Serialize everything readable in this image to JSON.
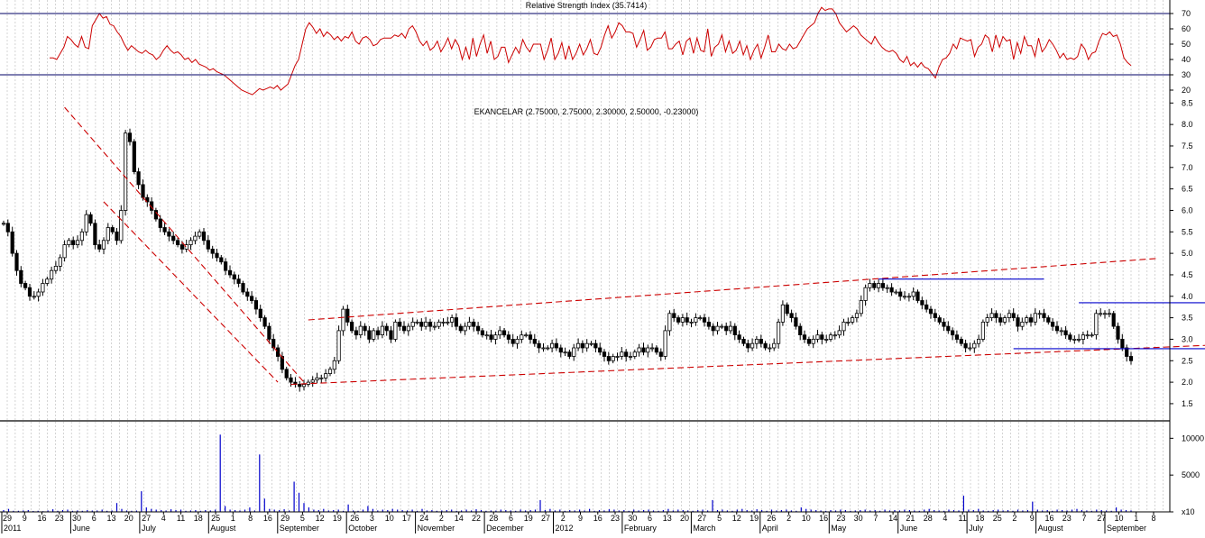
{
  "chart_data": [
    {
      "type": "line",
      "title": "Relative Strength Index (35.7414)",
      "ylim": [
        15,
        75
      ],
      "y_ticks": [
        70,
        60,
        50,
        40,
        30,
        20
      ],
      "reference_lines": [
        70,
        30
      ],
      "color": "#cc0000",
      "series": [
        {
          "values": [
            41,
            41,
            40,
            44,
            48,
            55,
            53,
            50,
            48,
            55,
            48,
            47,
            62,
            66,
            70,
            67,
            68,
            63,
            62,
            58,
            55,
            50,
            46,
            49,
            47,
            45,
            44,
            46,
            44,
            43,
            40,
            42,
            46,
            49,
            46,
            44,
            45,
            43,
            40,
            41,
            38,
            40,
            37,
            36,
            35,
            33,
            34,
            32,
            31,
            30,
            28,
            26,
            24,
            22,
            20,
            19,
            18,
            17,
            19,
            21,
            20,
            21,
            22,
            21,
            23,
            20,
            22,
            24,
            30,
            36,
            40,
            50,
            60,
            64,
            61,
            57,
            60,
            55,
            58,
            56,
            53,
            55,
            52,
            55,
            54,
            58,
            52,
            50,
            54,
            55,
            53,
            49,
            50,
            53,
            54,
            54,
            54,
            56,
            55,
            57,
            54,
            60,
            62,
            58,
            52,
            49,
            52,
            46,
            48,
            52,
            45,
            49,
            54,
            47,
            53,
            49,
            40,
            48,
            40,
            54,
            42,
            50,
            56,
            44,
            52,
            40,
            42,
            48,
            48,
            38,
            43,
            48,
            44,
            53,
            48,
            45,
            50,
            50,
            50,
            40,
            46,
            54,
            40,
            44,
            51,
            40,
            49,
            40,
            44,
            50,
            43,
            47,
            53,
            44,
            43,
            48,
            56,
            62,
            54,
            58,
            64,
            62,
            58,
            58,
            57,
            48,
            53,
            59,
            46,
            48,
            53,
            54,
            54,
            58,
            47,
            47,
            50,
            52,
            43,
            52,
            54,
            44,
            54,
            46,
            45,
            60,
            42,
            48,
            50,
            56,
            45,
            52,
            44,
            46,
            52,
            43,
            49,
            40,
            46,
            50,
            41,
            48,
            56,
            45,
            45,
            50,
            47,
            46,
            50,
            47,
            48,
            52,
            56,
            60,
            62,
            64,
            70,
            74,
            72,
            73,
            73,
            70,
            64,
            61,
            58,
            60,
            62,
            60,
            56,
            54,
            52,
            50,
            55,
            51,
            48,
            46,
            45,
            46,
            44,
            40,
            38,
            42,
            36,
            38,
            35,
            38,
            35,
            34,
            31,
            28,
            35,
            40,
            41,
            44,
            50,
            47,
            54,
            53,
            52,
            53,
            42,
            48,
            50,
            56,
            54,
            45,
            56,
            48,
            55,
            52,
            53,
            40,
            51,
            44,
            55,
            49,
            49,
            42,
            54,
            45,
            48,
            53,
            50,
            46,
            41,
            44,
            40,
            41,
            40,
            42,
            50,
            47,
            40,
            44,
            45,
            52,
            57,
            56,
            58,
            55,
            56,
            50,
            41,
            38,
            36
          ]
        }
      ]
    },
    {
      "type": "candlestick",
      "title": "EKANCELAR (2.75000, 2.75000, 2.30000, 2.50000, -0.23000)",
      "ylim": [
        1.1,
        8.8
      ],
      "y_ticks": [
        8.5,
        8.0,
        7.5,
        7.0,
        6.5,
        6.0,
        5.5,
        5.0,
        4.5,
        4.0,
        3.5,
        3.0,
        2.5,
        2.0,
        1.5
      ],
      "close": [
        5.7,
        5.5,
        5.0,
        4.6,
        4.3,
        4.2,
        4.0,
        4.0,
        4.1,
        4.3,
        4.4,
        4.6,
        4.7,
        4.9,
        5.2,
        5.3,
        5.2,
        5.3,
        5.5,
        5.9,
        5.7,
        5.2,
        5.1,
        5.3,
        5.6,
        5.5,
        5.3,
        6.0,
        7.8,
        7.6,
        6.9,
        6.6,
        6.3,
        6.2,
        6.0,
        5.8,
        5.6,
        5.5,
        5.4,
        5.3,
        5.2,
        5.1,
        5.2,
        5.3,
        5.4,
        5.5,
        5.3,
        5.1,
        5.0,
        4.9,
        4.8,
        4.6,
        4.5,
        4.4,
        4.3,
        4.1,
        4.0,
        3.9,
        3.7,
        3.5,
        3.3,
        3.0,
        2.8,
        2.6,
        2.3,
        2.1,
        2.0,
        1.95,
        1.9,
        1.95,
        2.0,
        2.05,
        2.1,
        2.1,
        2.2,
        2.3,
        2.5,
        3.2,
        3.7,
        3.4,
        3.2,
        3.1,
        3.3,
        3.2,
        3.0,
        3.2,
        3.1,
        3.3,
        3.2,
        3.0,
        3.4,
        3.3,
        3.2,
        3.3,
        3.4,
        3.4,
        3.3,
        3.4,
        3.3,
        3.3,
        3.4,
        3.4,
        3.4,
        3.5,
        3.3,
        3.2,
        3.3,
        3.4,
        3.3,
        3.2,
        3.1,
        3.1,
        3.0,
        3.1,
        3.2,
        3.1,
        3.0,
        2.9,
        3.0,
        3.1,
        3.1,
        3.0,
        2.9,
        2.8,
        2.8,
        2.8,
        2.9,
        2.8,
        2.7,
        2.7,
        2.6,
        2.8,
        2.9,
        2.8,
        2.9,
        2.9,
        2.8,
        2.7,
        2.6,
        2.5,
        2.6,
        2.6,
        2.7,
        2.6,
        2.6,
        2.7,
        2.8,
        2.7,
        2.8,
        2.8,
        2.7,
        2.6,
        3.2,
        3.6,
        3.5,
        3.4,
        3.5,
        3.4,
        3.4,
        3.5,
        3.5,
        3.4,
        3.3,
        3.2,
        3.3,
        3.3,
        3.2,
        3.3,
        3.1,
        3.0,
        2.9,
        2.8,
        2.9,
        3.0,
        2.9,
        2.8,
        2.8,
        2.9,
        3.4,
        3.8,
        3.6,
        3.5,
        3.3,
        3.1,
        3.0,
        2.9,
        3.0,
        3.1,
        3.0,
        3.0,
        3.1,
        3.1,
        3.2,
        3.4,
        3.4,
        3.5,
        3.6,
        3.9,
        4.2,
        4.3,
        4.2,
        4.3,
        4.2,
        4.2,
        4.1,
        4.1,
        4.0,
        4.0,
        4.0,
        4.1,
        3.9,
        3.8,
        3.7,
        3.6,
        3.5,
        3.4,
        3.3,
        3.2,
        3.1,
        3.0,
        2.9,
        2.8,
        2.8,
        2.9,
        3.0,
        3.4,
        3.5,
        3.6,
        3.5,
        3.4,
        3.5,
        3.6,
        3.5,
        3.3,
        3.4,
        3.5,
        3.4,
        3.6,
        3.6,
        3.5,
        3.4,
        3.3,
        3.2,
        3.2,
        3.1,
        3.0,
        3.0,
        3.0,
        3.1,
        3.1,
        3.1,
        3.6,
        3.6,
        3.6,
        3.6,
        3.3,
        3.0,
        2.8,
        2.6,
        2.5
      ],
      "annotations": [
        {
          "type": "trendline",
          "from": [
            14,
            8.4
          ],
          "to": [
            69,
            2.0
          ],
          "style": "dashed",
          "color": "#cc0000"
        },
        {
          "type": "trendline",
          "from": [
            23,
            6.2
          ],
          "to": [
            63,
            2.0
          ],
          "style": "dashed",
          "color": "#cc0000"
        },
        {
          "type": "trendline",
          "from": [
            66,
            1.95
          ],
          "to": [
            286,
            2.9
          ],
          "style": "dashed",
          "color": "#cc0000"
        },
        {
          "type": "trendline",
          "from": [
            70,
            3.45
          ],
          "to": [
            265,
            4.88
          ],
          "style": "dashed",
          "color": "#cc0000"
        },
        {
          "type": "hline",
          "from": [
            201,
            4.4
          ],
          "to": [
            239,
            4.4
          ],
          "color": "#0000cc"
        },
        {
          "type": "hline",
          "from": [
            247,
            3.85
          ],
          "to": [
            286,
            3.85
          ],
          "color": "#0000cc"
        },
        {
          "type": "hline",
          "from": [
            232,
            2.78
          ],
          "to": [
            283,
            2.78
          ],
          "color": "#0000cc"
        }
      ]
    },
    {
      "type": "bar",
      "ylim": [
        0,
        12000
      ],
      "y_ticks": [
        10000,
        5000,
        0
      ],
      "y_tick_labels": [
        "10000",
        "5000",
        "x10"
      ],
      "color": "#0000cc",
      "values": [
        250,
        400,
        150,
        150,
        200,
        250,
        120,
        150,
        100,
        200,
        350,
        150,
        250,
        300,
        150,
        200,
        150,
        250,
        180,
        200,
        300,
        150,
        200,
        1200,
        400,
        200,
        150,
        180,
        2800,
        600,
        400,
        300,
        250,
        200,
        350,
        250,
        300,
        150,
        200,
        250,
        150,
        250,
        200,
        300,
        10500,
        800,
        300,
        250,
        200,
        300,
        600,
        200,
        7800,
        1800,
        400,
        300,
        250,
        350,
        200,
        4100,
        2600,
        1200,
        600,
        300,
        250,
        400,
        200,
        250,
        300,
        150,
        1000,
        200,
        150,
        300,
        800,
        400,
        200,
        300,
        250,
        400,
        300,
        250,
        200,
        300,
        150,
        400,
        200,
        250,
        150,
        200,
        250,
        300,
        150,
        200,
        300,
        200,
        350,
        250,
        150,
        200,
        180,
        300,
        250,
        200,
        150,
        300,
        200,
        250,
        300,
        1600,
        250,
        400,
        200,
        300,
        150,
        250,
        200,
        300,
        200,
        400,
        150,
        250,
        200,
        350,
        300,
        200,
        250,
        150,
        300,
        200,
        250,
        300,
        200,
        150,
        250,
        400,
        200,
        300,
        250,
        200,
        150,
        250,
        300,
        200,
        1600,
        250,
        300,
        200,
        150,
        300,
        400,
        250,
        200,
        350,
        250,
        150,
        300,
        200,
        250,
        300,
        200,
        150,
        600,
        400,
        300,
        250,
        200,
        150,
        250,
        200,
        300,
        250,
        150,
        200,
        250,
        300,
        200,
        250,
        150,
        300,
        200,
        250,
        200,
        300,
        250,
        200,
        150,
        300,
        400,
        250,
        200,
        150,
        300,
        250,
        200,
        2200,
        300,
        250,
        400,
        200,
        150,
        250,
        300,
        200,
        250,
        150,
        300,
        200,
        250,
        1400,
        300,
        200,
        250,
        150,
        300,
        250,
        200,
        300,
        400,
        250,
        200,
        150,
        300,
        250,
        200,
        150,
        600,
        300,
        250,
        200
      ]
    }
  ],
  "x_axis": {
    "tick_labels": [
      "29",
      "9",
      "16",
      "23",
      "30",
      "6",
      "13",
      "20",
      "27",
      "4",
      "11",
      "18",
      "25",
      "1",
      "8",
      "16",
      "29",
      "5",
      "12",
      "19",
      "26",
      "3",
      "10",
      "17",
      "24",
      "2",
      "14",
      "22",
      "28",
      "6",
      "19",
      "27",
      "2",
      "9",
      "16",
      "23",
      "30",
      "6",
      "13",
      "20",
      "27",
      "5",
      "12",
      "19",
      "26",
      "2",
      "10",
      "16",
      "23",
      "30",
      "7",
      "14",
      "21",
      "28",
      "4",
      "11",
      "18",
      "25",
      "2",
      "9",
      "16",
      "23",
      "7",
      "27",
      "10",
      "1",
      "8"
    ],
    "month_labels": [
      "2011",
      "June",
      "July",
      "August",
      "September",
      "October",
      "November",
      "December",
      "2012",
      "February",
      "March",
      "April",
      "May",
      "June",
      "July",
      "August",
      "September"
    ]
  }
}
